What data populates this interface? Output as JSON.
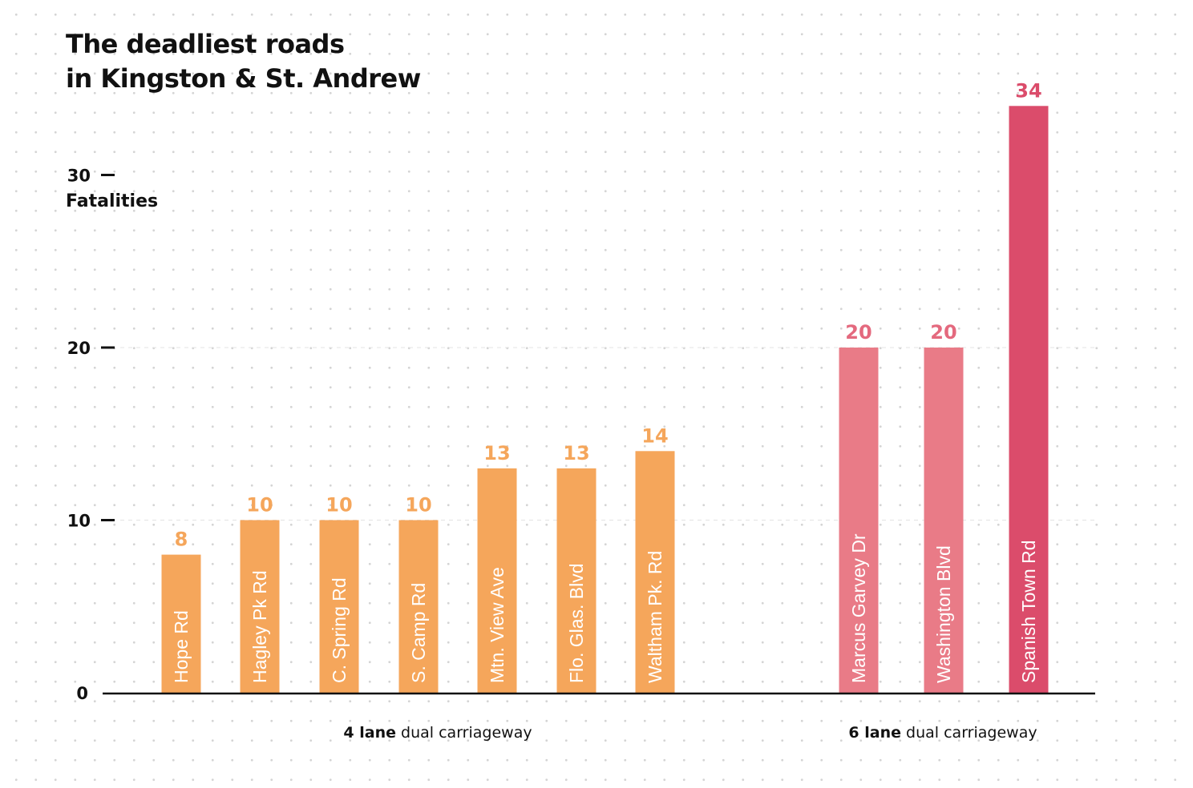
{
  "chart_data": {
    "type": "bar",
    "title_lines": [
      "The deadliest roads",
      "in Kingston & St. Andrew"
    ],
    "ylabel": "Fatalities",
    "ylim": [
      0,
      34
    ],
    "yticks": [
      0,
      10,
      20,
      30
    ],
    "grid": "dashed horizontal at 10 and 20",
    "series": [
      {
        "group": "4 lane dual carriageway",
        "color": "#f5a65b",
        "categories": [
          "Hope Rd",
          "Hagley Pk Rd",
          "C. Spring Rd",
          "S. Camp Rd",
          "Mtn. View Ave",
          "Flo. Glas. Blvd",
          "Waltham Pk. Rd"
        ],
        "values": [
          8,
          10,
          10,
          10,
          13,
          13,
          14
        ]
      },
      {
        "group": "6 lane dual carriageway",
        "color": "#e97b87",
        "categories": [
          "Marcus Garvey Dr",
          "Washington Blvd",
          "Spanish Town Rd"
        ],
        "values": [
          20,
          20,
          34
        ],
        "highlight": {
          "category": "Spanish Town Rd",
          "color": "#db4c6b"
        }
      }
    ],
    "value_label_colors": {
      "4 lane dual carriageway": "#f5a65b",
      "6 lane dual carriageway": "#e4697e"
    }
  },
  "groups": [
    {
      "bold": "4 lane",
      "rest": " dual carriageway"
    },
    {
      "bold": "6 lane",
      "rest": " dual carriageway"
    }
  ]
}
